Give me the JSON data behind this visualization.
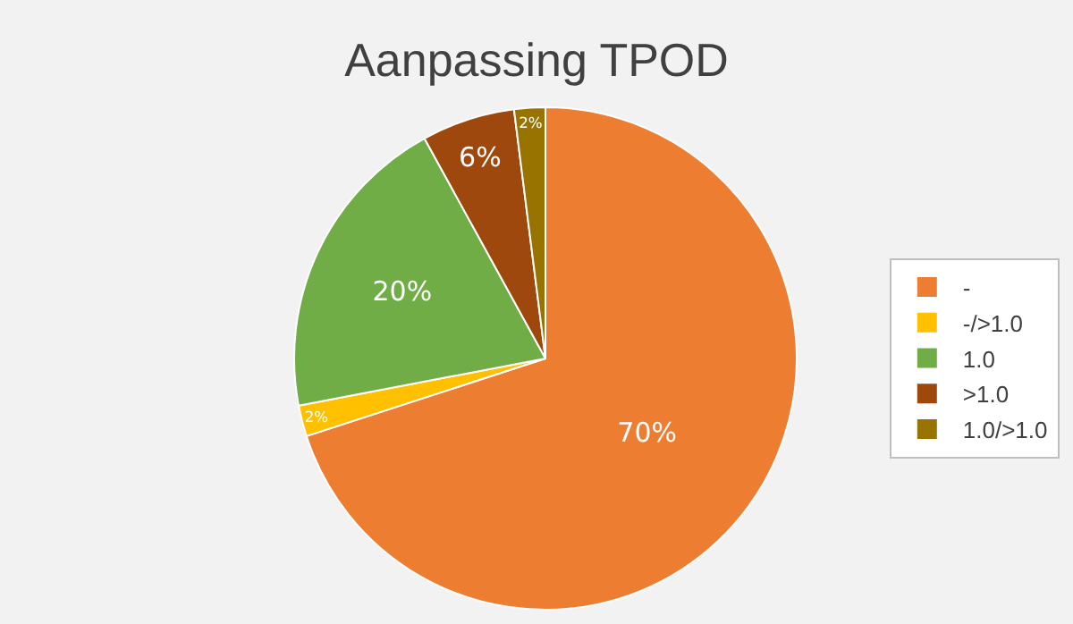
{
  "chart_data": {
    "type": "pie",
    "title": "Aanpassing TPOD",
    "categories": [
      "-",
      "-/>1.0",
      "1.0",
      ">1.0",
      "1.0/>1.0"
    ],
    "values": [
      70,
      2,
      20,
      6,
      2
    ],
    "colors": [
      "#ed7d31",
      "#ffc000",
      "#70ad47",
      "#9e480e",
      "#997300"
    ],
    "value_labels": [
      "70%",
      "2%",
      "20%",
      "6%",
      "2%"
    ],
    "legend": "right"
  }
}
